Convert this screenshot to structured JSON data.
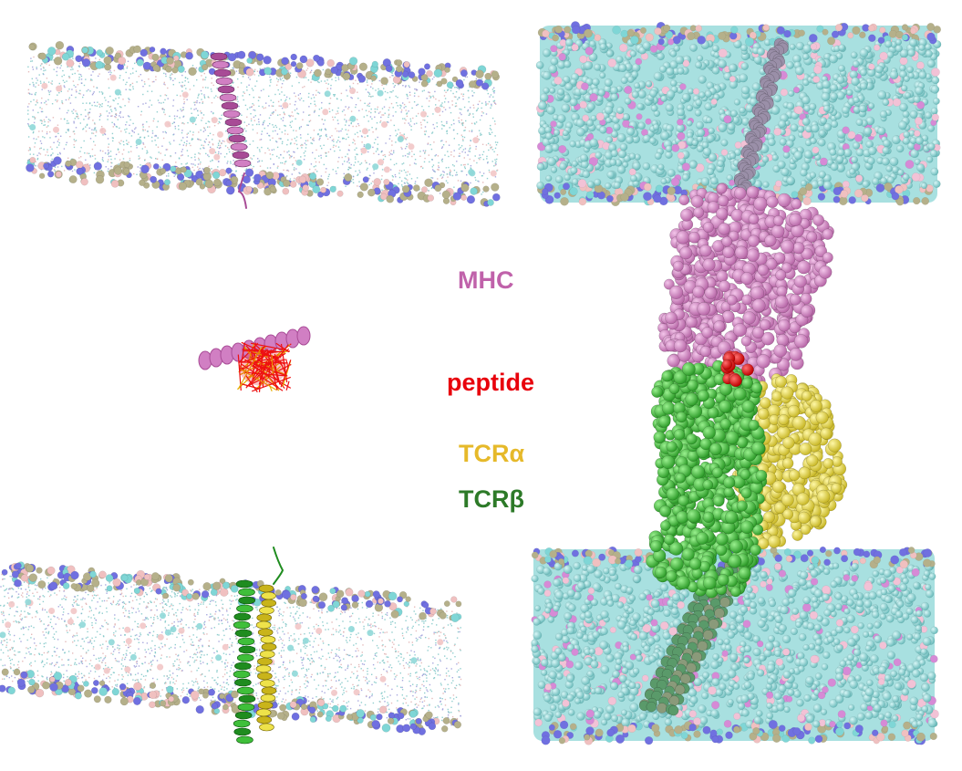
{
  "labels": {
    "mhc": {
      "text": "MHC",
      "color": "#c062aa"
    },
    "peptide": {
      "text": "peptide",
      "color": "#e8000b"
    },
    "tcr_alpha": {
      "text": "TCRα",
      "color": "#e6b92a"
    },
    "tcr_beta": {
      "text": "TCRβ",
      "color": "#2d7a28"
    }
  },
  "colors": {
    "mhc": "#d17fc3",
    "mhc_dark": "#a84b96",
    "peptide": "#ee1010",
    "tcr_alpha": "#eee24a",
    "tcr_alpha_dark": "#c9b41a",
    "tcr_beta": "#3fbf3a",
    "tcr_beta_dark": "#1f8c1f",
    "lipid_head_1": "#b5b08a",
    "lipid_head_2": "#7070e0",
    "lipid_head_3": "#f0c0c0",
    "lipid_head_4": "#7fd6d6",
    "lipid_tail": "#8fd3d3",
    "membrane_fill": "#a8e0e0",
    "tm_helix": "#8a8a9a"
  }
}
